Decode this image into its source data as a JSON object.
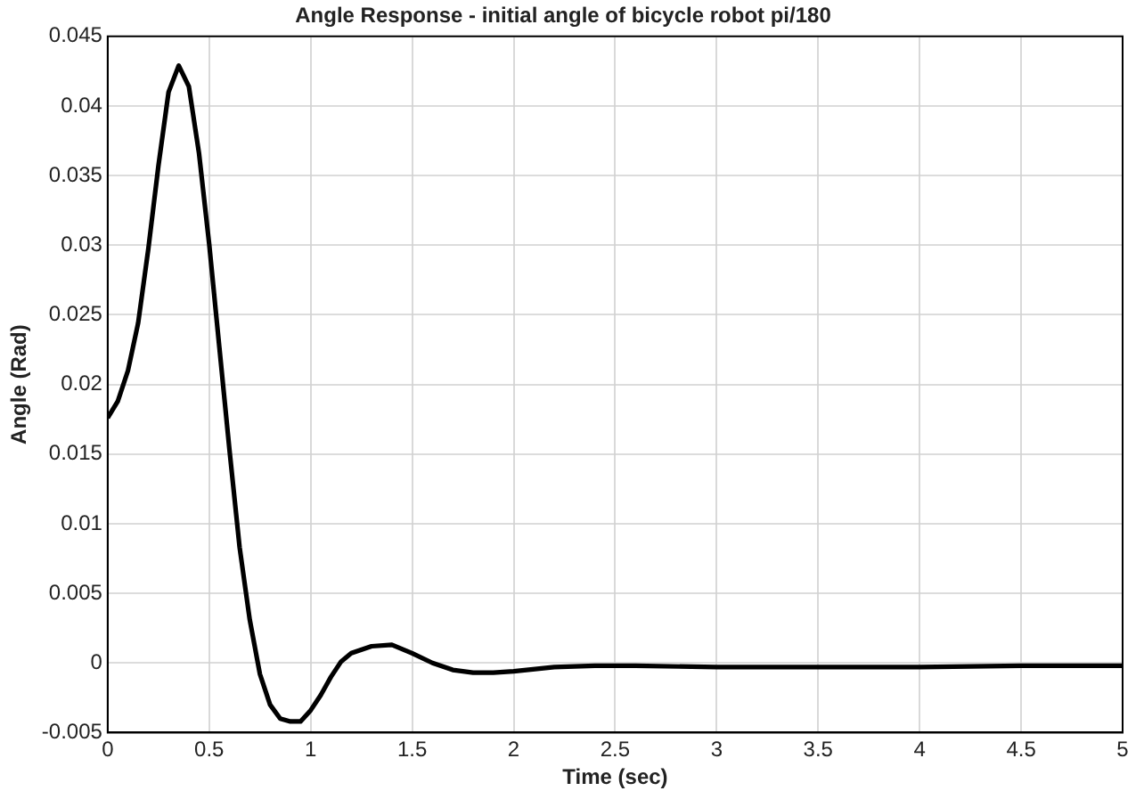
{
  "chart_data": {
    "type": "line",
    "title": "Angle Response - initial angle of bicycle robot pi/180",
    "xlabel": "Time (sec)",
    "ylabel": "Angle (Rad)",
    "x": [
      0,
      0.05,
      0.1,
      0.15,
      0.2,
      0.25,
      0.3,
      0.35,
      0.4,
      0.45,
      0.5,
      0.55,
      0.6,
      0.65,
      0.7,
      0.75,
      0.8,
      0.85,
      0.9,
      0.95,
      1.0,
      1.05,
      1.1,
      1.15,
      1.2,
      1.3,
      1.4,
      1.5,
      1.6,
      1.7,
      1.8,
      1.9,
      2.0,
      2.2,
      2.4,
      2.6,
      3.0,
      3.5,
      4.0,
      4.5,
      5.0
    ],
    "series": [
      {
        "color": "#000000",
        "values": [
          0.0176,
          0.0188,
          0.021,
          0.0244,
          0.0297,
          0.0357,
          0.041,
          0.0429,
          0.0414,
          0.0366,
          0.0301,
          0.0227,
          0.0153,
          0.0083,
          0.0031,
          -0.0008,
          -0.003,
          -0.004,
          -0.0042,
          -0.0042,
          -0.0034,
          -0.0023,
          -0.001,
          0.0001,
          0.0007,
          0.0012,
          0.0013,
          0.0007,
          0,
          -0.0005,
          -0.0007,
          -0.0007,
          -0.0006,
          -0.0003,
          -0.0002,
          -0.0002,
          -0.0003,
          -0.0003,
          -0.0003,
          -0.0002,
          -0.0002
        ]
      }
    ],
    "xlim": [
      0,
      5
    ],
    "xticks": [
      0,
      0.5,
      1,
      1.5,
      2,
      2.5,
      3,
      3.5,
      4,
      4.5,
      5
    ],
    "ylim": [
      -0.005,
      0.045
    ],
    "yticks": [
      -0.005,
      0,
      0.005,
      0.01,
      0.015,
      0.02,
      0.025,
      0.03,
      0.035,
      0.04,
      0.045
    ],
    "grid": true,
    "legend": false,
    "marker": "none",
    "line_style": "solid"
  }
}
